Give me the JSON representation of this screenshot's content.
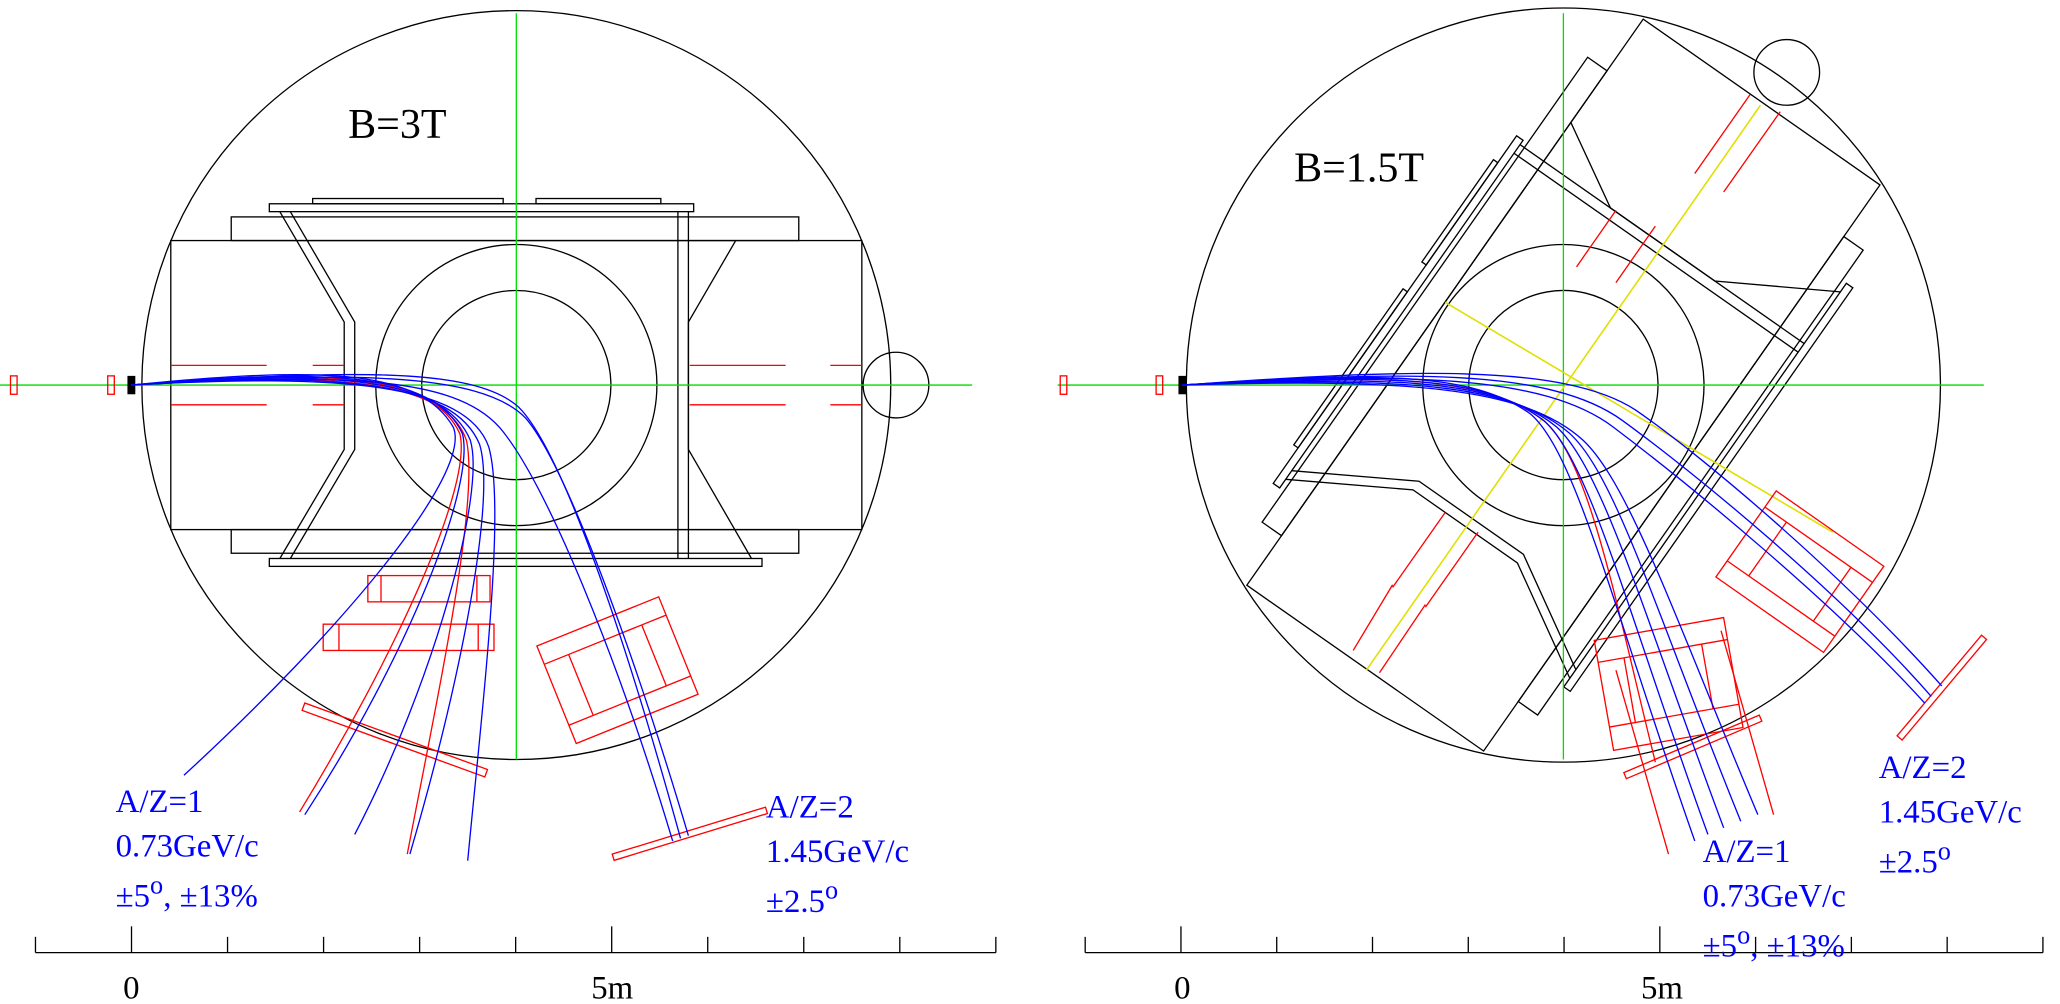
{
  "panels": [
    {
      "field": "B=3T",
      "labels": [
        {
          "lines": [
            {
              "text": "A/Z=1"
            },
            {
              "text": "0.73GeV/c"
            },
            {
              "pre": "±5",
              "sup": "o",
              "post": ", ±13%"
            }
          ]
        },
        {
          "lines": [
            {
              "text": "A/Z=2"
            },
            {
              "text": "1.45GeV/c"
            },
            {
              "pre": "±2.5",
              "sup": "o"
            }
          ]
        }
      ],
      "scale": {
        "start": "0",
        "end": "5m"
      }
    },
    {
      "field": "B=1.5T",
      "labels": [
        {
          "lines": [
            {
              "text": "A/Z=2"
            },
            {
              "text": "1.45GeV/c"
            },
            {
              "pre": "±2.5",
              "sup": "o"
            }
          ]
        },
        {
          "lines": [
            {
              "text": "A/Z=1"
            },
            {
              "text": "0.73GeV/c"
            },
            {
              "pre": "±5",
              "sup": "o",
              "post": ", ±13%"
            }
          ]
        }
      ],
      "scale": {
        "start": "0",
        "end": "5m"
      }
    }
  ]
}
